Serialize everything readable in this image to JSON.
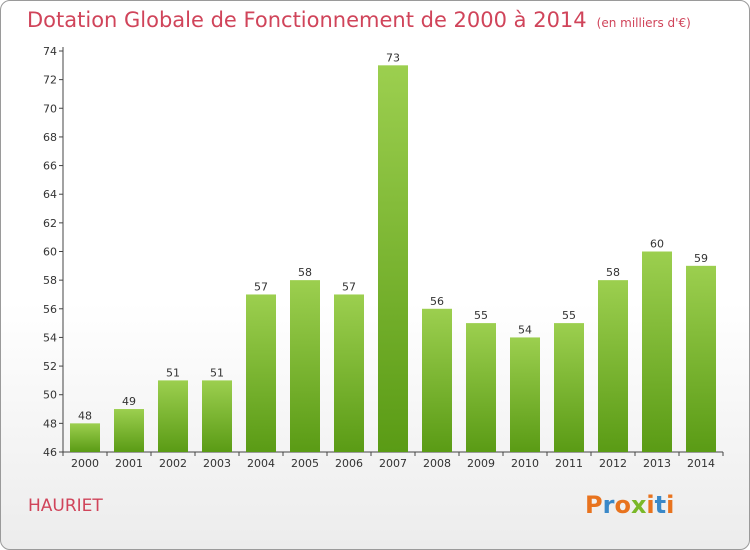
{
  "page": {
    "title": "Dotation Globale de Fonctionnement de 2000 à 2014",
    "unit_note": "(en milliers d'€)",
    "commune": "HAURIET",
    "logo_text": "Proxiti"
  },
  "colors": {
    "title": "#d0445a",
    "bar_top": "#9ccf4f",
    "bar_bottom": "#5a9b15",
    "logo_letters": [
      "#e8731e",
      "#3a88c8",
      "#e8731e",
      "#7ab829",
      "#e8731e",
      "#3a88c8",
      "#e8731e"
    ]
  },
  "chart_data": {
    "type": "bar",
    "title": "Dotation Globale de Fonctionnement de 2000 à 2014",
    "subtitle": "(en milliers d'€)",
    "xlabel": "",
    "ylabel": "",
    "categories": [
      "2000",
      "2001",
      "2002",
      "2003",
      "2004",
      "2005",
      "2006",
      "2007",
      "2008",
      "2009",
      "2010",
      "2011",
      "2012",
      "2013",
      "2014"
    ],
    "values": [
      48,
      49,
      51,
      51,
      57,
      58,
      57,
      73,
      56,
      55,
      54,
      55,
      58,
      60,
      59
    ],
    "ylim": [
      46,
      74
    ],
    "yticks": [
      46,
      48,
      50,
      52,
      54,
      56,
      58,
      60,
      62,
      64,
      66,
      68,
      70,
      72,
      74
    ],
    "grid": false,
    "legend": "none"
  }
}
